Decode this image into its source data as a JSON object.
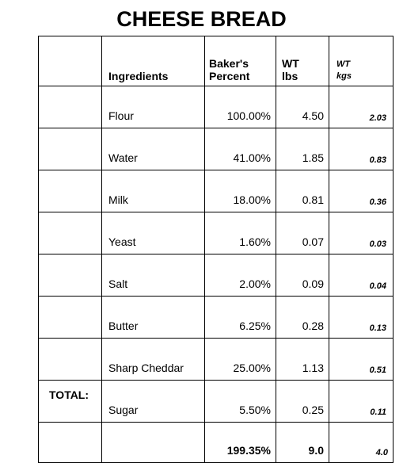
{
  "title": "CHEESE BREAD",
  "headers": {
    "ingredients": "Ingredients",
    "bakers_percent_line1": "Baker's",
    "bakers_percent_line2": "Percent",
    "wt_lbs_line1": "WT",
    "wt_lbs_line2": "lbs",
    "wt_kgs_line1": "WT",
    "wt_kgs_line2": "kgs"
  },
  "rows": [
    {
      "ingredient": "Flour",
      "percent": "100.00%",
      "lbs": "4.50",
      "kgs": "2.03"
    },
    {
      "ingredient": "Water",
      "percent": "41.00%",
      "lbs": "1.85",
      "kgs": "0.83"
    },
    {
      "ingredient": "Milk",
      "percent": "18.00%",
      "lbs": "0.81",
      "kgs": "0.36"
    },
    {
      "ingredient": "Yeast",
      "percent": "1.60%",
      "lbs": "0.07",
      "kgs": "0.03"
    },
    {
      "ingredient": "Salt",
      "percent": "2.00%",
      "lbs": "0.09",
      "kgs": "0.04"
    },
    {
      "ingredient": "Butter",
      "percent": "6.25%",
      "lbs": "0.28",
      "kgs": "0.13"
    },
    {
      "ingredient": "Sharp Cheddar",
      "percent": "25.00%",
      "lbs": "1.13",
      "kgs": "0.51"
    },
    {
      "ingredient": "Sugar",
      "percent": "5.50%",
      "lbs": "0.25",
      "kgs": "0.11"
    }
  ],
  "total": {
    "label": "TOTAL:",
    "percent": "199.35%",
    "lbs": "9.0",
    "kgs": "4.0"
  }
}
